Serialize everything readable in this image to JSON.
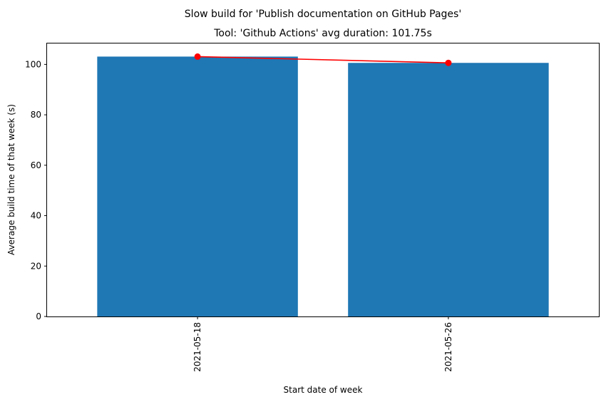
{
  "chart_data": {
    "type": "bar",
    "suptitle": "Slow build for 'Publish documentation on GitHub Pages'",
    "title": "Tool: 'Github Actions' avg duration: 101.75s",
    "xlabel": "Start date of week",
    "ylabel": "Average build time of that week (s)",
    "categories": [
      "2021-05-18",
      "2021-05-26"
    ],
    "values": [
      103.1,
      100.6
    ],
    "ylim": [
      0,
      108.3
    ],
    "yticks": [
      0,
      20,
      40,
      60,
      80,
      100
    ],
    "xtick_rotation": "vertical",
    "grid": false,
    "legend": "none",
    "series": [
      {
        "type": "bar",
        "values": [
          103.1,
          100.6
        ],
        "color": "#1f77b4"
      },
      {
        "type": "line",
        "marker": "circle",
        "values": [
          103.1,
          100.6
        ],
        "color": "#ff0000"
      }
    ]
  }
}
